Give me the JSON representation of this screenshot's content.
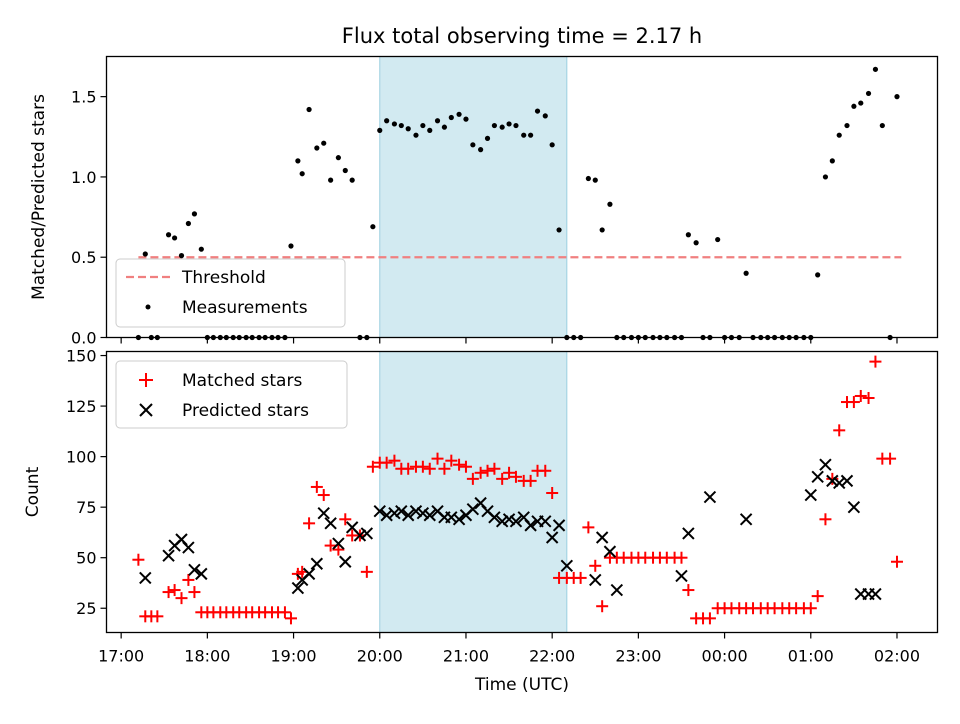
{
  "chart_data": [
    {
      "type": "scatter",
      "title": "Flux total observing time = 2.17 h",
      "ylabel": "Matched/Predicted stars",
      "xlabel": "",
      "ylim": [
        0,
        1.75
      ],
      "yticks": [
        0.0,
        0.5,
        1.0,
        1.5
      ],
      "ytick_labels": [
        "0.0",
        "0.5",
        "1.0",
        "1.5"
      ],
      "xlim": [
        16.83,
        26.47
      ],
      "xticks": [
        17,
        18,
        19,
        20,
        21,
        22,
        23,
        24,
        25,
        26
      ],
      "shaded_interval": [
        20.0,
        22.17
      ],
      "shade_color": "#add8e6",
      "threshold": {
        "name": "Threshold",
        "y": 0.5,
        "x_range": [
          17.2,
          26.05
        ],
        "color": "#f08080"
      },
      "legend": {
        "placement": "lower-left",
        "entries": [
          "Threshold",
          "Measurements"
        ]
      },
      "series": [
        {
          "name": "Measurements",
          "color": "#000000",
          "x": [
            17.2,
            17.28,
            17.35,
            17.42,
            17.55,
            17.62,
            17.7,
            17.78,
            17.85,
            17.93,
            18.0,
            18.07,
            18.15,
            18.22,
            18.3,
            18.37,
            18.45,
            18.52,
            18.6,
            18.67,
            18.75,
            18.82,
            18.9,
            18.97,
            19.05,
            19.1,
            19.18,
            19.27,
            19.35,
            19.43,
            19.52,
            19.6,
            19.68,
            19.77,
            19.85,
            19.92,
            20.0,
            20.08,
            20.17,
            20.25,
            20.33,
            20.42,
            20.5,
            20.58,
            20.67,
            20.75,
            20.83,
            20.92,
            21.0,
            21.08,
            21.17,
            21.25,
            21.33,
            21.42,
            21.5,
            21.58,
            21.67,
            21.75,
            21.83,
            21.92,
            22.0,
            22.08,
            22.17,
            22.25,
            22.33,
            22.42,
            22.5,
            22.58,
            22.67,
            22.75,
            22.83,
            22.92,
            23.0,
            23.08,
            23.17,
            23.25,
            23.33,
            23.42,
            23.5,
            23.58,
            23.67,
            23.75,
            23.83,
            23.92,
            24.0,
            24.08,
            24.17,
            24.25,
            24.33,
            24.42,
            24.5,
            24.58,
            24.67,
            24.75,
            24.83,
            24.92,
            25.0,
            25.08,
            25.17,
            25.25,
            25.33,
            25.42,
            25.5,
            25.58,
            25.67,
            25.75,
            25.83,
            25.92,
            26.0
          ],
          "y": [
            0.0,
            0.52,
            0.0,
            0.0,
            0.64,
            0.62,
            0.51,
            0.71,
            0.77,
            0.55,
            0.0,
            0.0,
            0.0,
            0.0,
            0.0,
            0.0,
            0.0,
            0.0,
            0.0,
            0.0,
            0.0,
            0.0,
            0.0,
            0.57,
            1.1,
            1.02,
            1.42,
            1.18,
            1.21,
            0.98,
            1.12,
            1.04,
            0.98,
            0.0,
            0.0,
            0.69,
            1.29,
            1.35,
            1.33,
            1.32,
            1.3,
            1.26,
            1.32,
            1.29,
            1.35,
            1.31,
            1.37,
            1.39,
            1.36,
            1.2,
            1.17,
            1.24,
            1.32,
            1.31,
            1.33,
            1.32,
            1.26,
            1.26,
            1.41,
            1.38,
            1.2,
            0.67,
            0.0,
            0.0,
            0.0,
            0.99,
            0.98,
            0.67,
            0.83,
            0.0,
            0.0,
            0.0,
            0.0,
            0.0,
            0.0,
            0.0,
            0.0,
            0.0,
            0.0,
            0.64,
            0.59,
            0.0,
            0.0,
            0.61,
            0.0,
            0.0,
            0.0,
            0.4,
            0.0,
            0.0,
            0.0,
            0.0,
            0.0,
            0.0,
            0.0,
            0.0,
            0.0,
            0.39,
            1.0,
            1.1,
            1.26,
            1.32,
            1.44,
            1.46,
            1.52,
            1.67,
            1.32,
            0.0,
            1.5
          ]
        }
      ]
    },
    {
      "type": "scatter",
      "title": "",
      "ylabel": "Count",
      "xlabel": "Time (UTC)",
      "ylim": [
        13,
        152
      ],
      "yticks": [
        25,
        50,
        75,
        100,
        125,
        150
      ],
      "ytick_labels": [
        "25",
        "50",
        "75",
        "100",
        "125",
        "150"
      ],
      "xlim": [
        16.83,
        26.47
      ],
      "xticks": [
        17,
        18,
        19,
        20,
        21,
        22,
        23,
        24,
        25,
        26
      ],
      "xtick_labels": [
        "17:00",
        "18:00",
        "19:00",
        "20:00",
        "21:00",
        "22:00",
        "23:00",
        "00:00",
        "01:00",
        "02:00"
      ],
      "shaded_interval": [
        20.0,
        22.17
      ],
      "shade_color": "#add8e6",
      "legend": {
        "placement": "top-left",
        "entries": [
          "Matched stars",
          "Predicted stars"
        ]
      },
      "series": [
        {
          "name": "Matched stars",
          "marker": "plus",
          "color": "#ff0000",
          "x": [
            17.2,
            17.28,
            17.35,
            17.42,
            17.55,
            17.62,
            17.7,
            17.78,
            17.85,
            17.93,
            18.0,
            18.07,
            18.15,
            18.22,
            18.3,
            18.37,
            18.45,
            18.52,
            18.6,
            18.67,
            18.75,
            18.82,
            18.9,
            18.97,
            19.05,
            19.1,
            19.18,
            19.27,
            19.35,
            19.43,
            19.52,
            19.6,
            19.68,
            19.77,
            19.85,
            19.92,
            20.0,
            20.08,
            20.17,
            20.25,
            20.33,
            20.42,
            20.5,
            20.58,
            20.67,
            20.75,
            20.83,
            20.92,
            21.0,
            21.08,
            21.17,
            21.25,
            21.33,
            21.42,
            21.5,
            21.58,
            21.67,
            21.75,
            21.83,
            21.92,
            22.0,
            22.08,
            22.17,
            22.25,
            22.33,
            22.42,
            22.5,
            22.58,
            22.67,
            22.75,
            22.83,
            22.92,
            23.0,
            23.08,
            23.17,
            23.25,
            23.33,
            23.42,
            23.5,
            23.58,
            23.67,
            23.75,
            23.83,
            23.92,
            24.0,
            24.08,
            24.17,
            24.25,
            24.33,
            24.42,
            24.5,
            24.58,
            24.67,
            24.75,
            24.83,
            24.92,
            25.0,
            25.08,
            25.17,
            25.25,
            25.33,
            25.42,
            25.5,
            25.58,
            25.67,
            25.75,
            25.83,
            25.92,
            26.0
          ],
          "y": [
            49,
            21,
            21,
            21,
            33,
            34,
            30,
            39,
            33,
            23,
            23,
            23,
            23,
            23,
            23,
            23,
            23,
            23,
            23,
            23,
            23,
            23,
            23,
            20,
            42,
            43,
            67,
            85,
            81,
            56,
            54,
            69,
            61,
            61,
            43,
            95,
            97,
            97,
            98,
            94,
            94,
            95,
            95,
            94,
            99,
            94,
            98,
            96,
            95,
            89,
            92,
            93,
            94,
            89,
            92,
            90,
            88,
            88,
            93,
            93,
            82,
            40,
            40,
            40,
            40,
            65,
            46,
            26,
            50,
            50,
            50,
            50,
            50,
            50,
            50,
            50,
            50,
            50,
            50,
            34,
            20,
            20,
            20,
            25,
            25,
            25,
            25,
            25,
            25,
            25,
            25,
            25,
            25,
            25,
            25,
            25,
            25,
            31,
            69,
            89,
            113,
            127,
            127,
            130,
            129,
            147,
            99,
            99,
            48
          ]
        },
        {
          "name": "Predicted stars",
          "marker": "x",
          "color": "#000000",
          "x": [
            17.28,
            17.55,
            17.62,
            17.7,
            17.78,
            17.85,
            17.93,
            19.05,
            19.1,
            19.18,
            19.27,
            19.35,
            19.43,
            19.52,
            19.6,
            19.68,
            19.77,
            19.85,
            20.0,
            20.08,
            20.17,
            20.25,
            20.33,
            20.42,
            20.5,
            20.58,
            20.67,
            20.75,
            20.83,
            20.92,
            21.0,
            21.08,
            21.17,
            21.25,
            21.33,
            21.42,
            21.5,
            21.58,
            21.67,
            21.75,
            21.83,
            21.92,
            22.0,
            22.08,
            22.17,
            22.5,
            22.58,
            22.67,
            22.75,
            23.5,
            23.58,
            23.83,
            24.25,
            25.0,
            25.08,
            25.17,
            25.25,
            25.33,
            25.42,
            25.5,
            25.58,
            25.67,
            25.75
          ],
          "y": [
            40,
            51,
            56,
            59,
            55,
            44,
            42,
            35,
            39,
            42,
            47,
            72,
            67,
            57,
            48,
            65,
            61,
            62,
            73,
            71,
            72,
            73,
            71,
            73,
            72,
            71,
            73,
            70,
            70,
            69,
            71,
            74,
            77,
            73,
            70,
            68,
            69,
            68,
            70,
            66,
            68,
            68,
            60,
            66,
            46,
            39,
            60,
            53,
            34,
            41,
            62,
            80,
            69,
            81,
            90,
            96,
            88,
            87,
            88,
            75,
            32,
            32,
            32
          ]
        }
      ]
    }
  ]
}
